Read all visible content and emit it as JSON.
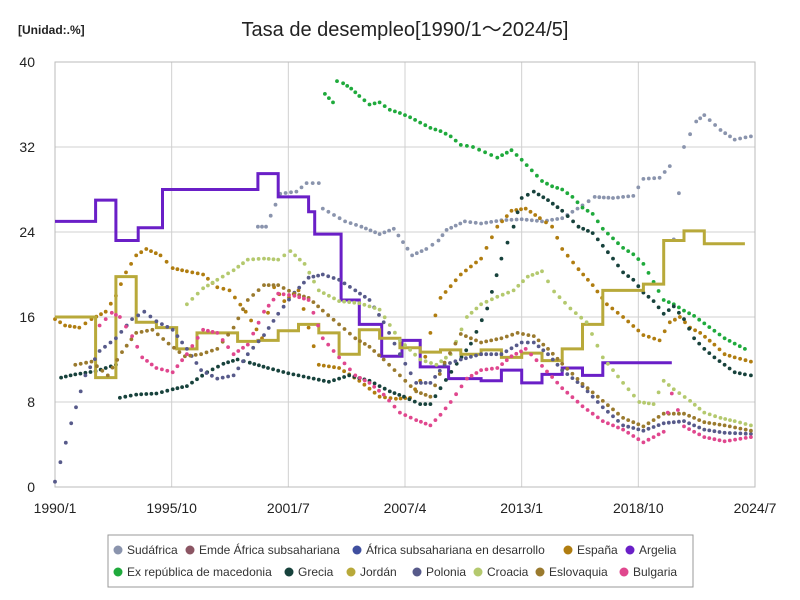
{
  "chart_data": {
    "type": "line",
    "title": "Tasa de desempleo[1990/1～2024/5]",
    "unit_label": "[Unidad:.%]",
    "xlabel": "",
    "ylabel": "",
    "x_start": "1990-01",
    "x_end": "2024-07",
    "x_ticks": [
      "1990/1",
      "1995/10",
      "2001/7",
      "2007/4",
      "2013/1",
      "2018/10",
      "2024/7"
    ],
    "x_tick_years": [
      1990.0,
      1995.75,
      2001.5,
      2007.25,
      2013.0,
      2018.75,
      2024.5
    ],
    "ylim": [
      0,
      40
    ],
    "y_ticks": [
      0,
      8,
      16,
      24,
      32,
      40
    ],
    "grid": true,
    "legend_position": "bottom",
    "series": [
      {
        "name": "Sudáfrica",
        "color": "#8a94ad",
        "style": "dots",
        "x": [
          2000.0,
          2000.4,
          2001.1,
          2001.9,
          2002.4,
          2003.0,
          2003.2,
          2004.3,
          2005.1,
          2006.0,
          2006.7,
          2007.6,
          2008.3,
          2008.9,
          2009.3,
          2010.2,
          2011.0,
          2012.0,
          2013.0,
          2014.0,
          2015.0,
          2016.0,
          2016.6,
          2017.5,
          2018.5,
          2019.0,
          2019.8,
          2020.3,
          2020.5,
          2021.0,
          2021.6,
          2022.0,
          2022.8,
          2023.5,
          2024.3
        ],
        "y": [
          24.5,
          24.5,
          27.6,
          27.8,
          28.6,
          28.6,
          26.2,
          25.0,
          24.5,
          23.8,
          24.3,
          21.8,
          22.4,
          23.2,
          24.2,
          25.0,
          24.8,
          25.1,
          25.2,
          25.0,
          25.3,
          26.5,
          27.3,
          27.2,
          27.4,
          29.0,
          29.1,
          30.2,
          23.3,
          32.0,
          34.4,
          35.0,
          33.6,
          32.7,
          33.0
        ]
      },
      {
        "name": "Emde África subsahariana",
        "color": "#8b5563",
        "style": "dots",
        "x": [],
        "y": []
      },
      {
        "name": "África subsahariana en desarrollo",
        "color": "#3f4f9f",
        "style": "dots",
        "x": [],
        "y": []
      },
      {
        "name": "España",
        "color": "#b07d10",
        "style": "dots",
        "x": [
          1990.0,
          1990.5,
          1991.2,
          1991.8,
          1992.5,
          1993.0,
          1993.5,
          1994.0,
          1994.5,
          1995.2,
          1995.8,
          1996.5,
          1997.3,
          1998.0,
          1998.6,
          1999.4,
          2000.2,
          2000.8,
          2001.3,
          2002.0,
          2003.0,
          2004.0,
          2005.0,
          2006.0,
          2006.8,
          2007.5,
          2008.0,
          2008.5,
          2009.0,
          2010.0,
          2011.0,
          2011.8,
          2012.5,
          2013.2,
          2013.9,
          2014.5,
          2015.0,
          2015.8,
          2016.5,
          2017.2,
          2018.0,
          2019.0,
          2019.8,
          2020.3,
          2020.8,
          2021.3,
          2021.8,
          2022.5,
          2023.0,
          2023.5,
          2024.3
        ],
        "y": [
          15.8,
          15.2,
          15.0,
          15.8,
          16.5,
          18.0,
          20.2,
          21.8,
          22.4,
          21.8,
          20.6,
          20.3,
          20.0,
          18.8,
          18.5,
          16.5,
          14.0,
          18.8,
          17.5,
          18.5,
          11.5,
          11.2,
          10.0,
          8.5,
          8.3,
          8.4,
          10.0,
          14.5,
          17.8,
          20.0,
          21.5,
          24.5,
          26.0,
          26.2,
          25.3,
          24.5,
          22.4,
          20.5,
          19.0,
          17.2,
          16.0,
          14.3,
          13.8,
          15.5,
          16.0,
          15.0,
          14.5,
          13.4,
          12.5,
          12.2,
          11.8
        ]
      },
      {
        "name": "Argelia",
        "color": "#6a1fc7",
        "style": "steps",
        "x": [
          1990.0,
          1992.0,
          1993.0,
          1994.1,
          1995.3,
          1996.2,
          2000.0,
          2000.5,
          2001.0,
          2001.8,
          2002.5,
          2002.8,
          2003.3,
          2004.1,
          2005.0,
          2006.1,
          2007.1,
          2008.0,
          2009.4,
          2011.0,
          2012.0,
          2013.0,
          2014.0,
          2015.0,
          2016.0,
          2017.0,
          2018.0,
          2019.0,
          2019.4
        ],
        "y": [
          25.0,
          27.0,
          23.2,
          24.4,
          28.0,
          28.0,
          29.5,
          29.5,
          27.3,
          27.3,
          25.9,
          23.8,
          23.8,
          17.6,
          15.3,
          12.3,
          13.8,
          11.3,
          10.2,
          10.0,
          11.0,
          9.8,
          10.6,
          11.2,
          10.5,
          11.7,
          11.7,
          11.7,
          11.7
        ]
      },
      {
        "name": "Ex república de macedonia",
        "color": "#1faa3c",
        "style": "dots",
        "x": [
          2003.3,
          2003.7,
          2003.9,
          2004.2,
          2004.6,
          2005.0,
          2005.5,
          2006.0,
          2006.5,
          2007.0,
          2007.5,
          2008.0,
          2008.5,
          2009.0,
          2009.5,
          2010.0,
          2010.6,
          2011.2,
          2011.8,
          2012.5,
          2013.0,
          2013.5,
          2014.0,
          2014.5,
          2015.0,
          2015.5,
          2016.0,
          2016.5,
          2017.0,
          2017.5,
          2018.0,
          2018.5,
          2019.0,
          2019.5,
          2020.0,
          2020.5,
          2021.0,
          2021.5,
          2022.0,
          2022.5,
          2023.0,
          2023.5,
          2024.0
        ],
        "y": [
          37.0,
          36.2,
          38.2,
          38.0,
          37.5,
          36.8,
          36.0,
          36.2,
          35.5,
          35.2,
          34.8,
          34.3,
          33.8,
          33.5,
          33.0,
          32.2,
          32.0,
          31.5,
          31.0,
          31.7,
          30.8,
          29.8,
          28.8,
          28.3,
          28.0,
          27.3,
          26.3,
          25.7,
          24.3,
          23.4,
          22.5,
          21.9,
          21.0,
          19.3,
          17.6,
          17.2,
          16.6,
          16.1,
          15.4,
          14.7,
          14.0,
          13.5,
          13.0
        ]
      },
      {
        "name": "Grecia",
        "color": "#17423c",
        "style": "dots",
        "x": [
          1990.3,
          1991.0,
          1992.0,
          1993.0,
          1993.2,
          1994.0,
          1995.0,
          1995.8,
          1996.5,
          1997.5,
          1998.3,
          1999.0,
          1999.6,
          2000.5,
          2001.5,
          2002.5,
          2003.5,
          2004.5,
          2005.5,
          2006.5,
          2007.2,
          2008.0,
          2008.5,
          2009.0,
          2009.8,
          2010.5,
          2011.3,
          2012.0,
          2012.6,
          2013.0,
          2013.6,
          2014.3,
          2015.0,
          2015.8,
          2016.5,
          2017.5,
          2018.0,
          2018.5,
          2019.0,
          2019.5,
          2020.0,
          2020.5,
          2021.0,
          2021.5,
          2022.0,
          2022.5,
          2023.0,
          2023.5,
          2024.0,
          2024.3
        ],
        "y": [
          10.3,
          10.6,
          10.9,
          11.5,
          8.4,
          8.7,
          8.8,
          9.2,
          9.5,
          10.8,
          11.6,
          12.0,
          11.7,
          11.2,
          10.7,
          10.3,
          9.9,
          10.5,
          10.0,
          9.0,
          8.5,
          7.8,
          7.8,
          9.3,
          11.6,
          13.5,
          16.8,
          21.5,
          24.5,
          27.2,
          27.8,
          27.0,
          26.0,
          24.5,
          23.9,
          21.5,
          20.2,
          19.5,
          18.3,
          17.5,
          16.3,
          17.0,
          15.8,
          14.0,
          13.0,
          12.2,
          11.5,
          10.8,
          10.6,
          10.5
        ]
      },
      {
        "name": "Jordán",
        "color": "#b8a93a",
        "style": "steps",
        "x": [
          1990.0,
          1991.0,
          1992.0,
          1993.0,
          1994.0,
          1995.0,
          1996.0,
          1997.0,
          1998.0,
          1999.0,
          2000.0,
          2001.0,
          2002.0,
          2003.0,
          2004.0,
          2005.0,
          2006.0,
          2007.0,
          2008.0,
          2009.0,
          2010.0,
          2011.0,
          2012.0,
          2013.0,
          2014.0,
          2015.0,
          2016.0,
          2017.0,
          2018.0,
          2019.0,
          2020.0,
          2021.0,
          2022.0,
          2023.0
        ],
        "y": [
          16.0,
          16.0,
          10.3,
          19.8,
          15.5,
          15.0,
          13.0,
          14.5,
          14.5,
          13.7,
          13.8,
          14.7,
          15.3,
          14.5,
          12.5,
          14.8,
          14.0,
          13.1,
          12.7,
          12.9,
          12.5,
          12.9,
          12.2,
          12.6,
          11.9,
          13.0,
          15.3,
          18.5,
          18.5,
          19.1,
          23.2,
          24.1,
          22.9,
          22.9
        ]
      },
      {
        "name": "Polonia",
        "color": "#575a8a",
        "style": "dots",
        "x": [
          1990.0,
          1990.8,
          1991.5,
          1992.2,
          1993.0,
          1993.8,
          1994.4,
          1995.0,
          1995.8,
          1996.5,
          1997.2,
          1998.0,
          1998.8,
          1999.5,
          2000.3,
          2001.0,
          2001.8,
          2002.5,
          2003.2,
          2004.0,
          2004.8,
          2005.5,
          2006.2,
          2007.0,
          2007.8,
          2008.5,
          2009.2,
          2010.0,
          2011.0,
          2012.0,
          2013.0,
          2013.6,
          2014.3,
          2015.0,
          2016.0,
          2017.0,
          2018.0,
          2019.0,
          2020.0,
          2021.0,
          2022.0,
          2023.0,
          2024.3
        ],
        "y": [
          0.5,
          6.0,
          10.5,
          12.8,
          14.0,
          15.8,
          16.5,
          15.6,
          14.8,
          13.0,
          11.0,
          10.2,
          10.5,
          12.5,
          14.3,
          16.3,
          18.3,
          19.7,
          20.0,
          19.5,
          18.5,
          17.6,
          15.5,
          12.5,
          9.8,
          9.8,
          11.5,
          12.0,
          12.5,
          12.5,
          13.6,
          13.6,
          12.5,
          11.0,
          9.5,
          7.5,
          5.8,
          5.3,
          6.0,
          6.2,
          5.4,
          5.1,
          5.0
        ]
      },
      {
        "name": "Croacia",
        "color": "#b4c96e",
        "style": "dots",
        "x": [
          1996.5,
          1997.3,
          1998.0,
          1998.8,
          1999.5,
          2000.3,
          2001.0,
          2001.6,
          2002.3,
          2003.0,
          2004.0,
          2005.0,
          2006.0,
          2007.0,
          2008.0,
          2008.8,
          2009.5,
          2010.3,
          2011.0,
          2011.8,
          2012.6,
          2013.3,
          2014.0,
          2014.6,
          2015.4,
          2016.2,
          2017.0,
          2018.0,
          2018.8,
          2019.5,
          2020.0,
          2020.5,
          2021.3,
          2022.0,
          2022.8,
          2023.5,
          2024.3
        ],
        "y": [
          17.2,
          18.7,
          19.5,
          20.4,
          21.4,
          21.5,
          21.4,
          22.2,
          21.0,
          18.5,
          17.5,
          17.3,
          16.7,
          13.8,
          12.0,
          11.5,
          12.5,
          16.0,
          17.2,
          17.9,
          18.5,
          19.8,
          20.3,
          18.4,
          16.8,
          15.5,
          12.2,
          9.8,
          8.0,
          7.8,
          10.0,
          9.2,
          8.1,
          7.0,
          6.5,
          6.2,
          5.8
        ]
      },
      {
        "name": "Eslovaquia",
        "color": "#9a7a2e",
        "style": "dots",
        "x": [
          1991.0,
          1991.8,
          1992.6,
          1993.3,
          1994.0,
          1994.8,
          1995.6,
          1996.4,
          1997.2,
          1998.0,
          1998.8,
          1999.5,
          2000.3,
          2001.0,
          2001.8,
          2002.5,
          2003.2,
          2004.0,
          2004.8,
          2005.5,
          2006.2,
          2007.0,
          2007.8,
          2008.5,
          2009.2,
          2010.0,
          2011.0,
          2012.0,
          2012.8,
          2013.6,
          2014.3,
          2015.0,
          2016.0,
          2017.0,
          2018.0,
          2019.0,
          2020.0,
          2021.0,
          2022.0,
          2023.0,
          2024.3
        ],
        "y": [
          11.5,
          11.8,
          10.5,
          12.7,
          14.5,
          14.8,
          13.5,
          12.3,
          12.5,
          13.0,
          15.0,
          17.6,
          19.0,
          19.0,
          18.2,
          17.8,
          16.6,
          15.3,
          14.0,
          13.2,
          12.0,
          10.5,
          9.0,
          8.5,
          11.7,
          14.4,
          13.6,
          14.0,
          14.5,
          14.2,
          13.0,
          11.6,
          9.7,
          8.1,
          6.5,
          5.7,
          6.9,
          6.9,
          6.1,
          5.8,
          5.3
        ]
      },
      {
        "name": "Bulgaria",
        "color": "#e0478e",
        "style": "dots",
        "x": [
          1992.2,
          1992.8,
          1993.2,
          1993.8,
          1994.3,
          1995.0,
          1995.8,
          1996.5,
          1997.3,
          1998.0,
          1998.8,
          1999.5,
          2000.3,
          2001.0,
          2001.8,
          2002.5,
          2003.2,
          2004.0,
          2004.8,
          2005.5,
          2006.2,
          2007.0,
          2007.8,
          2008.5,
          2009.0,
          2009.5,
          2010.3,
          2011.0,
          2011.8,
          2012.5,
          2013.2,
          2014.0,
          2015.0,
          2016.0,
          2017.0,
          2018.0,
          2019.0,
          2020.0,
          2020.4,
          2021.0,
          2022.0,
          2023.0,
          2024.3
        ],
        "y": [
          15.2,
          16.4,
          16.0,
          14.2,
          12.2,
          11.2,
          10.8,
          12.5,
          14.8,
          14.5,
          12.5,
          13.4,
          16.5,
          18.2,
          18.0,
          17.6,
          14.0,
          12.2,
          10.5,
          9.8,
          8.7,
          7.0,
          6.3,
          5.8,
          6.8,
          8.0,
          10.2,
          11.0,
          11.2,
          12.3,
          13.0,
          11.4,
          9.3,
          7.6,
          6.2,
          5.4,
          4.2,
          5.2,
          8.8,
          5.7,
          4.7,
          4.3,
          4.7
        ]
      }
    ]
  }
}
